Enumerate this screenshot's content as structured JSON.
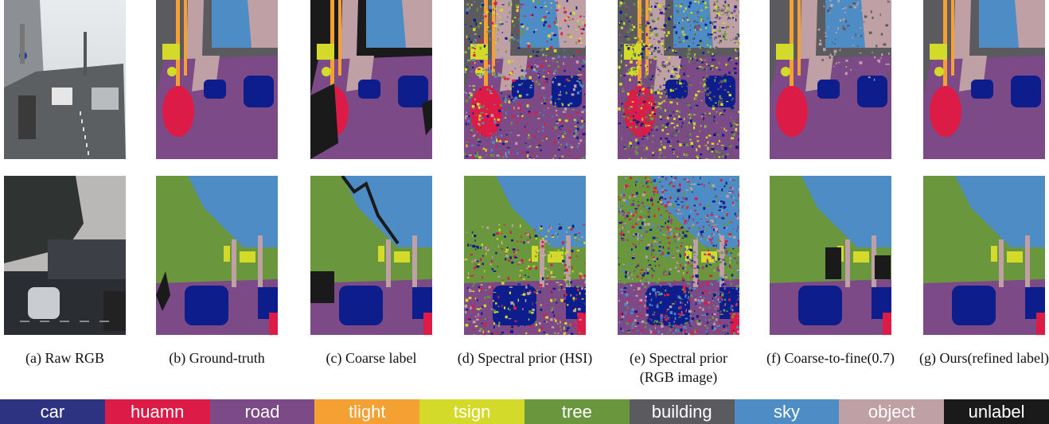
{
  "colors": {
    "car": "#0d1e8c",
    "huamn": "#dc1c47",
    "road": "#7c4a86",
    "tlight": "#f5a033",
    "tsign": "#d4da2a",
    "tree": "#6a963d",
    "building": "#5b5b5f",
    "sky": "#4d8cc4",
    "object": "#bfa0a5",
    "unlabel": "#1a1a1a",
    "raw_sky_top": "#e9ecef",
    "raw_dark": "#2a2e33",
    "raw_road": "#5c5f62"
  },
  "captions": [
    {
      "text": "(a) Raw RGB"
    },
    {
      "text": "(b) Ground-truth"
    },
    {
      "text": "(c) Coarse label"
    },
    {
      "text": "(d) Spectral prior (HSI)"
    },
    {
      "text": "(e) Spectral prior (RGB image)"
    },
    {
      "text": "(f) Coarse-to-fine(0.7)"
    },
    {
      "text": "(g) Ours(refined label)"
    }
  ],
  "legend": [
    {
      "label": "car",
      "bg": "#2d3380",
      "fg": "#ffffff"
    },
    {
      "label": "huamn",
      "bg": "#dc1c47",
      "fg": "#ffffff"
    },
    {
      "label": "road",
      "bg": "#7c4a86",
      "fg": "#ffffff"
    },
    {
      "label": "tlight",
      "bg": "#f5a033",
      "fg": "#ffffff"
    },
    {
      "label": "tsign",
      "bg": "#d4da2a",
      "fg": "#ffffff"
    },
    {
      "label": "tree",
      "bg": "#6a963d",
      "fg": "#ffffff"
    },
    {
      "label": "building",
      "bg": "#5b5b5f",
      "fg": "#ffffff"
    },
    {
      "label": "sky",
      "bg": "#4d8cc4",
      "fg": "#ffffff"
    },
    {
      "label": "object",
      "bg": "#bfa0a5",
      "fg": "#ffffff"
    },
    {
      "label": "unlabel",
      "bg": "#1a1a1a",
      "fg": "#ffffff"
    }
  ]
}
